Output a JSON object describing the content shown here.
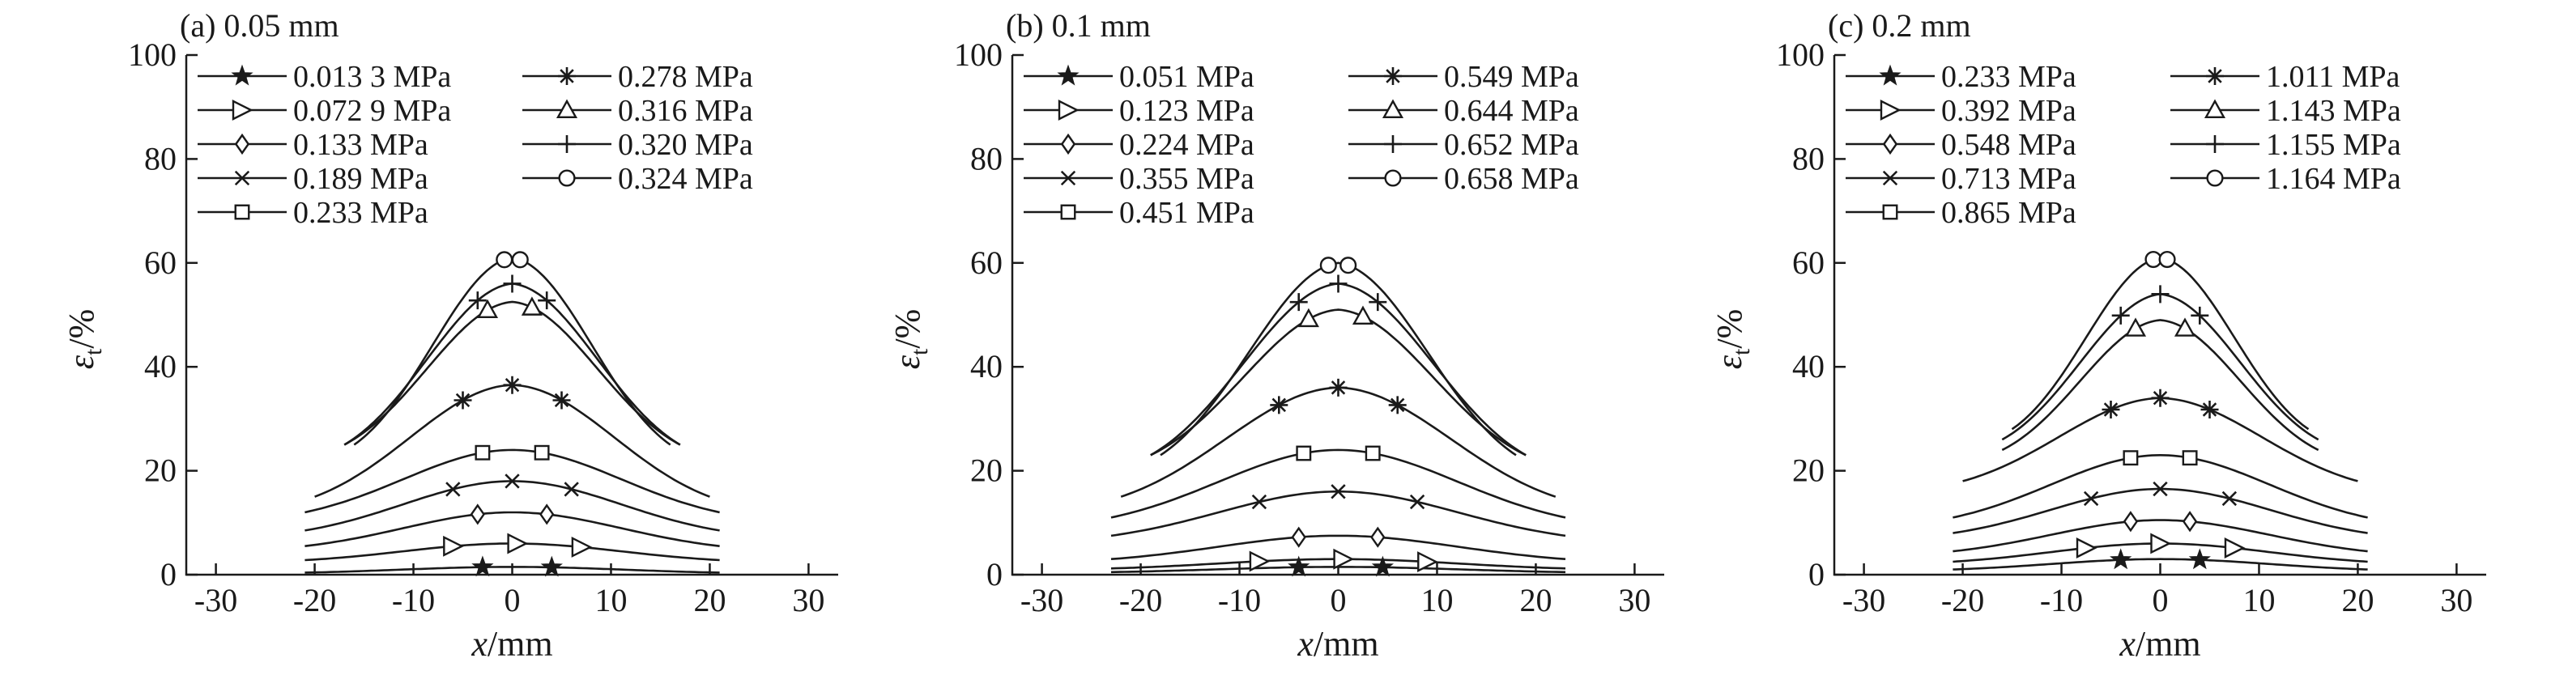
{
  "chart_data": [
    {
      "type": "line",
      "title": "(a) 0.05 mm",
      "xlabel": "x/mm",
      "ylabel": "εt/%",
      "xlim": [
        -33,
        33
      ],
      "ylim": [
        0,
        100
      ],
      "xticks": [
        -30,
        -20,
        -10,
        0,
        10,
        20,
        30
      ],
      "yticks": [
        0,
        20,
        40,
        60,
        80,
        100
      ],
      "legend_position": "top-left, two columns",
      "series": [
        {
          "name": "0.013 3 MPa",
          "marker": "star",
          "halfwidth": 21,
          "peak": 1.5,
          "base": 0.4,
          "sharp": 0,
          "markers_x": [
            -3,
            4
          ]
        },
        {
          "name": "0.072 9 MPa",
          "marker": "triangle-right",
          "halfwidth": 21,
          "peak": 6,
          "base": 2.8,
          "sharp": 0,
          "markers_x": [
            -6,
            0.5,
            7
          ]
        },
        {
          "name": "0.133 MPa",
          "marker": "diamond",
          "halfwidth": 21,
          "peak": 12,
          "base": 5.5,
          "sharp": 0,
          "markers_x": [
            -3.5,
            3.5
          ]
        },
        {
          "name": "0.189 MPa",
          "marker": "x",
          "halfwidth": 21,
          "peak": 18,
          "base": 8.5,
          "sharp": 0,
          "markers_x": [
            -6,
            0,
            6
          ]
        },
        {
          "name": "0.233 MPa",
          "marker": "square",
          "halfwidth": 21,
          "peak": 24,
          "base": 12,
          "sharp": 0,
          "markers_x": [
            -3,
            3
          ]
        },
        {
          "name": "0.278 MPa",
          "marker": "asterisk",
          "halfwidth": 20,
          "peak": 36.5,
          "base": 15,
          "sharp": 1,
          "markers_x": [
            -5,
            0,
            5
          ]
        },
        {
          "name": "0.316 MPa",
          "marker": "triangle-up",
          "halfwidth": 17,
          "peak": 52.5,
          "base": 25,
          "sharp": 2.5,
          "markers_x": [
            -2.5,
            2
          ]
        },
        {
          "name": "0.320 MPa",
          "marker": "plus",
          "halfwidth": 17,
          "peak": 56,
          "base": 25,
          "sharp": 3,
          "markers_x": [
            -3.5,
            0,
            3.5
          ]
        },
        {
          "name": "0.324 MPa",
          "marker": "circle",
          "halfwidth": 16,
          "peak": 61,
          "base": 25,
          "sharp": 4,
          "markers_x": [
            -0.8,
            0.8
          ]
        }
      ]
    },
    {
      "type": "line",
      "title": "(b) 0.1 mm",
      "xlabel": "x/mm",
      "ylabel": "εt/%",
      "xlim": [
        -33,
        33
      ],
      "ylim": [
        0,
        100
      ],
      "xticks": [
        -30,
        -20,
        -10,
        0,
        10,
        20,
        30
      ],
      "yticks": [
        0,
        20,
        40,
        60,
        80,
        100
      ],
      "legend_position": "top-left, two columns",
      "series": [
        {
          "name": "0.051 MPa",
          "marker": "star",
          "halfwidth": 23,
          "peak": 1.5,
          "base": 0.5,
          "sharp": 0,
          "markers_x": [
            -4,
            4.5
          ]
        },
        {
          "name": "0.123 MPa",
          "marker": "triangle-right",
          "halfwidth": 23,
          "peak": 3,
          "base": 1.2,
          "sharp": 0,
          "markers_x": [
            -8,
            0.5,
            9
          ]
        },
        {
          "name": "0.224 MPa",
          "marker": "diamond",
          "halfwidth": 23,
          "peak": 7.5,
          "base": 3,
          "sharp": 0,
          "markers_x": [
            -4,
            4
          ]
        },
        {
          "name": "0.355 MPa",
          "marker": "x",
          "halfwidth": 23,
          "peak": 16,
          "base": 7.5,
          "sharp": 0,
          "markers_x": [
            -8,
            0,
            8
          ]
        },
        {
          "name": "0.451 MPa",
          "marker": "square",
          "halfwidth": 23,
          "peak": 24,
          "base": 11,
          "sharp": 0,
          "markers_x": [
            -3.5,
            3.5
          ]
        },
        {
          "name": "0.549 MPa",
          "marker": "asterisk",
          "halfwidth": 22,
          "peak": 36,
          "base": 15,
          "sharp": 1,
          "markers_x": [
            -6,
            0,
            6
          ]
        },
        {
          "name": "0.644 MPa",
          "marker": "triangle-up",
          "halfwidth": 19,
          "peak": 51,
          "base": 23,
          "sharp": 2.5,
          "markers_x": [
            -3,
            2.5
          ]
        },
        {
          "name": "0.652 MPa",
          "marker": "plus",
          "halfwidth": 19,
          "peak": 56,
          "base": 23,
          "sharp": 3,
          "markers_x": [
            -4,
            0,
            4
          ]
        },
        {
          "name": "0.658 MPa",
          "marker": "circle",
          "halfwidth": 18,
          "peak": 60,
          "base": 23,
          "sharp": 4,
          "markers_x": [
            -1,
            1
          ]
        }
      ]
    },
    {
      "type": "line",
      "title": "(c) 0.2 mm",
      "xlabel": "x/mm",
      "ylabel": "εt/%",
      "xlim": [
        -33,
        33
      ],
      "ylim": [
        0,
        100
      ],
      "xticks": [
        -30,
        -20,
        -10,
        0,
        10,
        20,
        30
      ],
      "yticks": [
        0,
        20,
        40,
        60,
        80,
        100
      ],
      "legend_position": "top-left, two columns",
      "series": [
        {
          "name": "0.233 MPa",
          "marker": "star",
          "halfwidth": 21,
          "peak": 3,
          "base": 1,
          "sharp": 0,
          "markers_x": [
            -4,
            4
          ]
        },
        {
          "name": "0.392 MPa",
          "marker": "triangle-right",
          "halfwidth": 21,
          "peak": 6,
          "base": 2.5,
          "sharp": 0,
          "markers_x": [
            -7.5,
            0,
            7.5
          ]
        },
        {
          "name": "0.548 MPa",
          "marker": "diamond",
          "halfwidth": 21,
          "peak": 10.5,
          "base": 4.5,
          "sharp": 0,
          "markers_x": [
            -3,
            3
          ]
        },
        {
          "name": "0.713 MPa",
          "marker": "x",
          "halfwidth": 21,
          "peak": 16.5,
          "base": 8,
          "sharp": 0,
          "markers_x": [
            -7,
            0,
            7
          ]
        },
        {
          "name": "0.865 MPa",
          "marker": "square",
          "halfwidth": 21,
          "peak": 23,
          "base": 11,
          "sharp": 0,
          "markers_x": [
            -3,
            3
          ]
        },
        {
          "name": "1.011 MPa",
          "marker": "asterisk",
          "halfwidth": 20,
          "peak": 34,
          "base": 18,
          "sharp": 1,
          "markers_x": [
            -5,
            0,
            5
          ]
        },
        {
          "name": "1.143 MPa",
          "marker": "triangle-up",
          "halfwidth": 16,
          "peak": 49,
          "base": 24,
          "sharp": 2.5,
          "markers_x": [
            -2.5,
            2.5
          ]
        },
        {
          "name": "1.155 MPa",
          "marker": "plus",
          "halfwidth": 16,
          "peak": 54,
          "base": 26,
          "sharp": 3,
          "markers_x": [
            -4,
            0,
            4
          ]
        },
        {
          "name": "1.164 MPa",
          "marker": "circle",
          "halfwidth": 15,
          "peak": 61,
          "base": 28,
          "sharp": 4,
          "markers_x": [
            -0.7,
            0.7
          ]
        }
      ]
    }
  ]
}
